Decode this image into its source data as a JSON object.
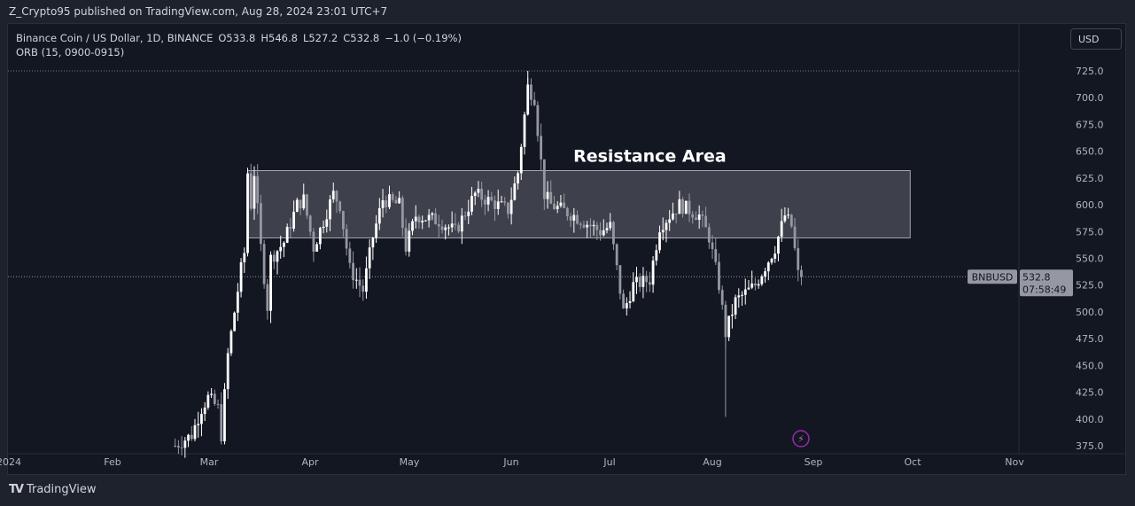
{
  "header": {
    "published": "Z_Crypto95 published on TradingView.com, Aug 28, 2024 23:01 UTC+7"
  },
  "legend": {
    "symbol": "Binance Coin / US Dollar, 1D, BINANCE",
    "open": "O533.8",
    "high": "H546.8",
    "low": "L527.2",
    "close": "C532.8",
    "change": "−1.0 (−0.19%)",
    "indicator": "ORB (15, 0900-0915)"
  },
  "currency_button": "USD",
  "footer": {
    "brand": "TradingView"
  },
  "colors": {
    "background": "#131722",
    "up": "#ffffff",
    "down": "#9598a1",
    "zone": "#434651"
  },
  "chart_data": {
    "type": "candlestick",
    "ylim": [
      360,
      730
    ],
    "y_ticks": [
      "375.0",
      "400.0",
      "425.0",
      "450.0",
      "475.0",
      "500.0",
      "525.0",
      "550.0",
      "575.0",
      "600.0",
      "625.0",
      "650.0",
      "675.0",
      "700.0",
      "725.0"
    ],
    "x_ticks": [
      "2024",
      "Feb",
      "Mar",
      "Apr",
      "May",
      "Jun",
      "Jul",
      "Aug",
      "Sep",
      "Oct",
      "Nov"
    ],
    "approx_closes": [
      [
        "2024-02-20",
        375
      ],
      [
        "2024-02-25",
        385
      ],
      [
        "2024-02-28",
        410
      ],
      [
        "2024-03-01",
        420
      ],
      [
        "2024-03-04",
        410
      ],
      [
        "2024-03-05",
        385
      ],
      [
        "2024-03-07",
        460
      ],
      [
        "2024-03-09",
        500
      ],
      [
        "2024-03-11",
        540
      ],
      [
        "2024-03-12",
        555
      ],
      [
        "2024-03-13",
        630
      ],
      [
        "2024-03-14",
        600
      ],
      [
        "2024-03-15",
        630
      ],
      [
        "2024-03-17",
        560
      ],
      [
        "2024-03-19",
        505
      ],
      [
        "2024-03-20",
        550
      ],
      [
        "2024-03-24",
        565
      ],
      [
        "2024-03-28",
        600
      ],
      [
        "2024-03-30",
        605
      ],
      [
        "2024-04-02",
        560
      ],
      [
        "2024-04-08",
        610
      ],
      [
        "2024-04-10",
        600
      ],
      [
        "2024-04-13",
        540
      ],
      [
        "2024-04-17",
        520
      ],
      [
        "2024-04-20",
        570
      ],
      [
        "2024-04-23",
        605
      ],
      [
        "2024-04-28",
        600
      ],
      [
        "2024-04-30",
        560
      ],
      [
        "2024-05-03",
        590
      ],
      [
        "2024-05-10",
        585
      ],
      [
        "2024-05-15",
        575
      ],
      [
        "2024-05-21",
        610
      ],
      [
        "2024-05-31",
        595
      ],
      [
        "2024-06-03",
        630
      ],
      [
        "2024-06-06",
        710
      ],
      [
        "2024-06-08",
        700
      ],
      [
        "2024-06-11",
        610
      ],
      [
        "2024-06-13",
        600
      ],
      [
        "2024-06-20",
        590
      ],
      [
        "2024-06-28",
        575
      ],
      [
        "2024-07-01",
        580
      ],
      [
        "2024-07-05",
        500
      ],
      [
        "2024-07-08",
        525
      ],
      [
        "2024-07-13",
        530
      ],
      [
        "2024-07-16",
        580
      ],
      [
        "2024-07-22",
        600
      ],
      [
        "2024-07-28",
        590
      ],
      [
        "2024-07-31",
        570
      ],
      [
        "2024-08-03",
        525
      ],
      [
        "2024-08-05",
        480
      ],
      [
        "2024-08-08",
        510
      ],
      [
        "2024-08-14",
        525
      ],
      [
        "2024-08-20",
        560
      ],
      [
        "2024-08-23",
        590
      ],
      [
        "2024-08-25",
        580
      ],
      [
        "2024-08-27",
        535
      ],
      [
        "2024-08-28",
        532.8
      ]
    ],
    "wick_extremes": {
      "high": 725,
      "low": 402
    },
    "resistance_zone": {
      "label": "Resistance Area",
      "from": "2024-03-13",
      "to": "2024-09-30",
      "top": 632,
      "bottom": 569
    },
    "last_price": {
      "symbol": "BNBUSD",
      "price": "532.8",
      "countdown": "07:58:49"
    }
  }
}
